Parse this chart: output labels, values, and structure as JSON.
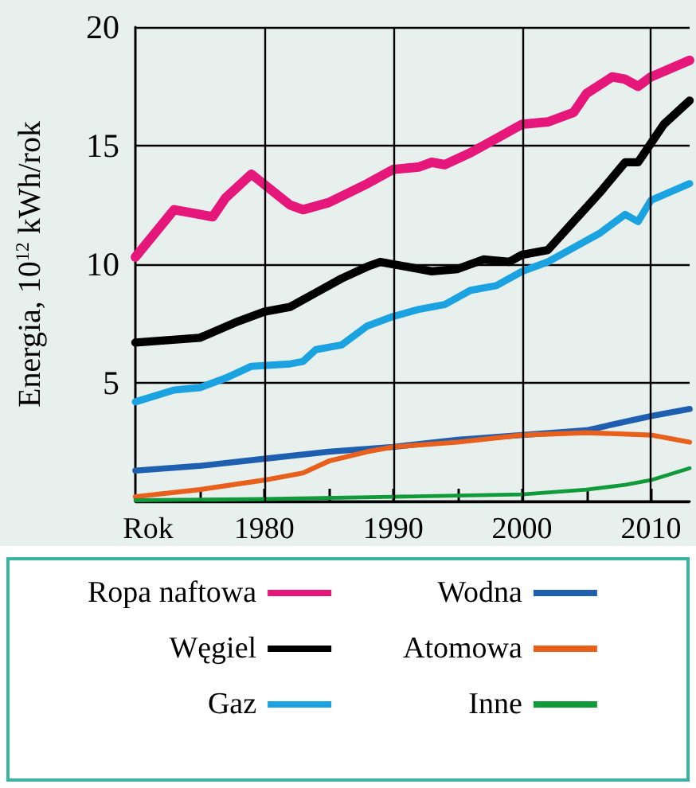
{
  "chart_data": {
    "type": "line",
    "xlabel": "Rok",
    "ylabel": "Energia, 10$^{12}$ kWh/rok",
    "xlim": [
      1970,
      2013
    ],
    "xticks": [
      {
        "value": 1975,
        "label": null
      },
      1980,
      {
        "value": 1985,
        "label": null
      },
      1990,
      {
        "value": 1995,
        "label": null
      },
      2000,
      {
        "value": 2005,
        "label": null
      },
      2010
    ],
    "ylim": [
      0,
      20
    ],
    "yticks": [
      5,
      10,
      15,
      20
    ],
    "grid": true,
    "legend": "bottom",
    "marker": "none",
    "line_style": "solid",
    "series": [
      {
        "name": "Ropa naftowa",
        "color": "#e5177a",
        "x": [
          1970,
          1973,
          1976,
          1977,
          1979,
          1982,
          1983,
          1985,
          1988,
          1990,
          1992,
          1993,
          1994,
          1996,
          1998,
          2000,
          2002,
          2004,
          2005,
          2007,
          2008,
          2009,
          2010,
          2013
        ],
        "values": [
          10.3,
          12.3,
          12.0,
          12.8,
          13.8,
          12.5,
          12.3,
          12.6,
          13.4,
          14.0,
          14.1,
          14.3,
          14.2,
          14.7,
          15.3,
          15.9,
          16.0,
          16.4,
          17.2,
          17.9,
          17.8,
          17.5,
          17.9,
          18.6
        ]
      },
      {
        "name": "Węgiel",
        "color": "#000000",
        "x": [
          1970,
          1975,
          1978,
          1980,
          1982,
          1984,
          1986,
          1988,
          1989,
          1991,
          1993,
          1995,
          1997,
          1999,
          2000,
          2002,
          2004,
          2006,
          2008,
          2009,
          2010,
          2011,
          2013
        ],
        "values": [
          6.7,
          6.9,
          7.6,
          8.0,
          8.2,
          8.8,
          9.4,
          9.9,
          10.1,
          9.9,
          9.7,
          9.8,
          10.2,
          10.1,
          10.4,
          10.6,
          11.8,
          13.0,
          14.3,
          14.3,
          15.1,
          15.9,
          16.9
        ]
      },
      {
        "name": "Gaz",
        "color": "#1aa3e0",
        "x": [
          1970,
          1973,
          1975,
          1977,
          1979,
          1982,
          1983,
          1984,
          1986,
          1988,
          1990,
          1992,
          1994,
          1996,
          1998,
          2000,
          2002,
          2004,
          2006,
          2008,
          2009,
          2010,
          2013
        ],
        "values": [
          4.2,
          4.7,
          4.8,
          5.2,
          5.7,
          5.8,
          5.9,
          6.4,
          6.6,
          7.4,
          7.8,
          8.1,
          8.3,
          8.9,
          9.1,
          9.7,
          10.1,
          10.7,
          11.3,
          12.1,
          11.8,
          12.7,
          13.4
        ]
      },
      {
        "name": "Wodna",
        "color": "#1f5fb0",
        "x": [
          1970,
          1975,
          1980,
          1985,
          1990,
          1995,
          2000,
          2005,
          2010,
          2013
        ],
        "values": [
          1.3,
          1.5,
          1.8,
          2.1,
          2.3,
          2.6,
          2.8,
          3.0,
          3.6,
          3.9
        ]
      },
      {
        "name": "Atomowa",
        "color": "#e8601c",
        "x": [
          1970,
          1975,
          1980,
          1983,
          1985,
          1988,
          1990,
          1995,
          2000,
          2005,
          2010,
          2013
        ],
        "values": [
          0.2,
          0.5,
          0.9,
          1.2,
          1.7,
          2.1,
          2.3,
          2.5,
          2.8,
          2.9,
          2.8,
          2.5
        ]
      },
      {
        "name": "Inne",
        "color": "#119a3a",
        "x": [
          1970,
          1980,
          1990,
          2000,
          2005,
          2008,
          2010,
          2013
        ],
        "values": [
          0.05,
          0.1,
          0.2,
          0.3,
          0.5,
          0.7,
          0.9,
          1.4
        ]
      }
    ]
  }
}
